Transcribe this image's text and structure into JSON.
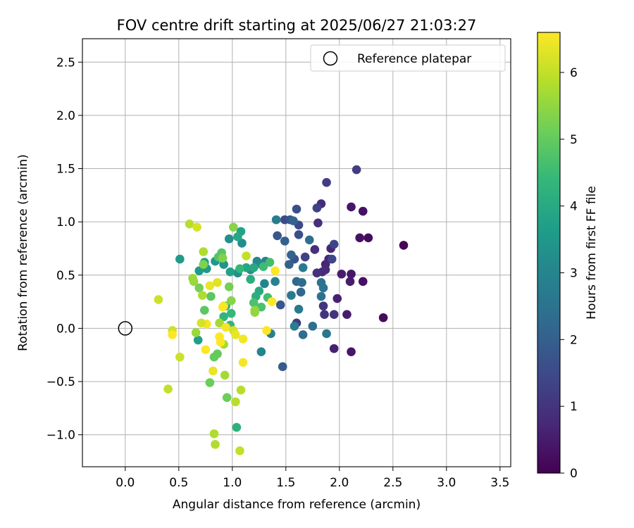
{
  "chart_data": {
    "type": "scatter",
    "title": "FOV centre drift starting at 2025/06/27 21:03:27",
    "xlabel": "Angular distance from reference (arcmin)",
    "ylabel": "Rotation from reference (arcmin)",
    "xlim": [
      -0.4,
      3.6
    ],
    "ylim": [
      -1.3,
      2.72
    ],
    "xticks": [
      "0.0",
      "0.5",
      "1.0",
      "1.5",
      "2.0",
      "2.5",
      "3.0",
      "3.5"
    ],
    "yticks": [
      "−1.0",
      "−0.5",
      "0.0",
      "0.5",
      "1.0",
      "1.5",
      "2.0",
      "2.5"
    ],
    "grid": true,
    "legend": {
      "position": "top-right",
      "entries": [
        "Reference platepar"
      ]
    },
    "reference_point": {
      "x": 0.0,
      "y": 0.0,
      "marker": "open-circle",
      "color": "#000000"
    },
    "colorbar": {
      "label": "Hours from first FF file",
      "range": [
        0,
        6.6
      ],
      "ticks": [
        "0",
        "1",
        "2",
        "3",
        "4",
        "5",
        "6"
      ],
      "colormap": "viridis"
    },
    "colormap_stops": [
      "#440154",
      "#482878",
      "#3e4989",
      "#31688e",
      "#26828e",
      "#1f9e89",
      "#35b779",
      "#6ece58",
      "#b5de2b",
      "#fde725"
    ],
    "series": [
      {
        "points": [
          {
            "x": 2.6,
            "y": 0.78,
            "h": 0.1
          },
          {
            "x": 2.41,
            "y": 0.1,
            "h": 0.2
          },
          {
            "x": 2.27,
            "y": 0.85,
            "h": 0.2
          },
          {
            "x": 2.22,
            "y": 1.1,
            "h": 0.3
          },
          {
            "x": 2.22,
            "y": 0.44,
            "h": 0.3
          },
          {
            "x": 2.19,
            "y": 0.85,
            "h": 0.3
          },
          {
            "x": 2.11,
            "y": 1.14,
            "h": 0.4
          },
          {
            "x": 2.11,
            "y": 0.51,
            "h": 0.4
          },
          {
            "x": 2.11,
            "y": -0.22,
            "h": 0.4
          },
          {
            "x": 2.1,
            "y": 0.44,
            "h": 0.5
          },
          {
            "x": 2.07,
            "y": 0.13,
            "h": 0.5
          },
          {
            "x": 2.02,
            "y": 0.51,
            "h": 0.5
          },
          {
            "x": 1.98,
            "y": 0.28,
            "h": 0.6
          },
          {
            "x": 1.95,
            "y": -0.19,
            "h": 0.6
          },
          {
            "x": 1.92,
            "y": 0.75,
            "h": 0.7
          },
          {
            "x": 1.9,
            "y": 0.65,
            "h": 0.7
          },
          {
            "x": 1.87,
            "y": 0.6,
            "h": 0.7
          },
          {
            "x": 1.87,
            "y": 0.55,
            "h": 0.8
          },
          {
            "x": 1.84,
            "y": 0.53,
            "h": 0.8
          },
          {
            "x": 1.83,
            "y": 1.17,
            "h": 0.8
          },
          {
            "x": 1.79,
            "y": 0.52,
            "h": 0.9
          },
          {
            "x": 1.77,
            "y": 0.74,
            "h": 0.9
          },
          {
            "x": 1.8,
            "y": 0.99,
            "h": 0.9
          },
          {
            "x": 1.85,
            "y": 0.21,
            "h": 1.0
          },
          {
            "x": 1.86,
            "y": 0.13,
            "h": 1.0
          },
          {
            "x": 1.95,
            "y": 0.13,
            "h": 1.0
          },
          {
            "x": 1.6,
            "y": 0.05,
            "h": 1.1
          },
          {
            "x": 1.88,
            "y": 1.37,
            "h": 1.2
          },
          {
            "x": 2.16,
            "y": 1.49,
            "h": 1.2
          },
          {
            "x": 1.79,
            "y": 1.13,
            "h": 1.3
          },
          {
            "x": 1.68,
            "y": 0.67,
            "h": 1.3
          },
          {
            "x": 1.93,
            "y": 0.65,
            "h": 1.4
          },
          {
            "x": 1.95,
            "y": 0.79,
            "h": 1.4
          },
          {
            "x": 1.62,
            "y": 0.97,
            "h": 1.5
          },
          {
            "x": 1.49,
            "y": 1.02,
            "h": 1.5
          },
          {
            "x": 1.6,
            "y": 1.12,
            "h": 1.6
          },
          {
            "x": 1.62,
            "y": 0.88,
            "h": 1.6
          },
          {
            "x": 1.58,
            "y": 0.65,
            "h": 1.7
          },
          {
            "x": 1.54,
            "y": 1.02,
            "h": 1.7
          },
          {
            "x": 1.42,
            "y": 0.87,
            "h": 1.8
          },
          {
            "x": 1.45,
            "y": 0.22,
            "h": 1.8
          },
          {
            "x": 1.47,
            "y": -0.36,
            "h": 1.9
          },
          {
            "x": 1.49,
            "y": 0.82,
            "h": 2.0
          },
          {
            "x": 1.53,
            "y": 0.6,
            "h": 2.0
          },
          {
            "x": 1.55,
            "y": 0.69,
            "h": 2.1
          },
          {
            "x": 1.57,
            "y": 1.01,
            "h": 2.1
          },
          {
            "x": 1.6,
            "y": 0.44,
            "h": 2.2
          },
          {
            "x": 1.64,
            "y": 0.34,
            "h": 2.2
          },
          {
            "x": 1.65,
            "y": 0.43,
            "h": 2.3
          },
          {
            "x": 1.66,
            "y": -0.06,
            "h": 2.3
          },
          {
            "x": 1.72,
            "y": 0.83,
            "h": 2.4
          },
          {
            "x": 1.75,
            "y": 0.02,
            "h": 2.4
          },
          {
            "x": 1.83,
            "y": 0.43,
            "h": 2.5
          },
          {
            "x": 1.83,
            "y": 0.3,
            "h": 2.5
          },
          {
            "x": 1.85,
            "y": 0.38,
            "h": 2.6
          },
          {
            "x": 1.88,
            "y": -0.05,
            "h": 2.6
          },
          {
            "x": 1.66,
            "y": 0.57,
            "h": 2.7
          },
          {
            "x": 1.62,
            "y": 0.18,
            "h": 2.7
          },
          {
            "x": 1.55,
            "y": 0.31,
            "h": 2.7
          },
          {
            "x": 1.58,
            "y": 0.02,
            "h": 2.8
          },
          {
            "x": 1.41,
            "y": 1.02,
            "h": 2.8
          },
          {
            "x": 1.4,
            "y": 0.44,
            "h": 2.9
          },
          {
            "x": 1.36,
            "y": -0.05,
            "h": 2.9
          },
          {
            "x": 1.31,
            "y": 0.63,
            "h": 2.9
          },
          {
            "x": 1.3,
            "y": 0.42,
            "h": 3.0
          },
          {
            "x": 1.27,
            "y": -0.22,
            "h": 3.0
          },
          {
            "x": 1.27,
            "y": 0.6,
            "h": 3.1
          },
          {
            "x": 1.23,
            "y": 0.63,
            "h": 3.1
          },
          {
            "x": 1.17,
            "y": 0.55,
            "h": 3.2
          },
          {
            "x": 1.09,
            "y": 0.8,
            "h": 3.2
          },
          {
            "x": 1.05,
            "y": 0.52,
            "h": 3.3
          },
          {
            "x": 0.97,
            "y": 0.84,
            "h": 3.3
          },
          {
            "x": 0.92,
            "y": 0.6,
            "h": 3.4
          },
          {
            "x": 0.84,
            "y": 0.63,
            "h": 3.5
          },
          {
            "x": 0.76,
            "y": 0.56,
            "h": 3.5
          },
          {
            "x": 0.69,
            "y": 0.54,
            "h": 3.6
          },
          {
            "x": 0.51,
            "y": 0.65,
            "h": 3.6
          },
          {
            "x": 0.68,
            "y": -0.11,
            "h": 3.7
          },
          {
            "x": 0.74,
            "y": 0.62,
            "h": 3.7
          },
          {
            "x": 0.98,
            "y": 0.53,
            "h": 3.8
          },
          {
            "x": 1.08,
            "y": 0.91,
            "h": 3.8
          },
          {
            "x": 1.05,
            "y": 0.86,
            "h": 3.9
          },
          {
            "x": 1.13,
            "y": 0.57,
            "h": 3.9
          },
          {
            "x": 1.2,
            "y": 0.57,
            "h": 4.0
          },
          {
            "x": 1.25,
            "y": 0.35,
            "h": 4.0
          },
          {
            "x": 1.22,
            "y": 0.3,
            "h": 4.1
          },
          {
            "x": 1.17,
            "y": 0.46,
            "h": 4.1
          },
          {
            "x": 1.04,
            "y": -0.93,
            "h": 4.2
          },
          {
            "x": 0.94,
            "y": 0.21,
            "h": 4.2
          },
          {
            "x": 0.92,
            "y": 0.11,
            "h": 4.3
          },
          {
            "x": 0.98,
            "y": 0.03,
            "h": 4.3
          },
          {
            "x": 0.99,
            "y": 0.14,
            "h": 4.4
          },
          {
            "x": 1.07,
            "y": 0.56,
            "h": 4.4
          },
          {
            "x": 1.29,
            "y": 0.58,
            "h": 4.5
          },
          {
            "x": 1.35,
            "y": 0.62,
            "h": 4.6
          },
          {
            "x": 1.33,
            "y": 0.29,
            "h": 4.6
          },
          {
            "x": 1.27,
            "y": 0.2,
            "h": 4.7
          },
          {
            "x": 1.2,
            "y": 0.24,
            "h": 4.7
          },
          {
            "x": 0.9,
            "y": 0.71,
            "h": 4.8
          },
          {
            "x": 0.87,
            "y": 0.67,
            "h": 4.8
          },
          {
            "x": 0.8,
            "y": 0.3,
            "h": 4.9
          },
          {
            "x": 0.74,
            "y": 0.17,
            "h": 4.9
          },
          {
            "x": 0.83,
            "y": -0.27,
            "h": 5.0
          },
          {
            "x": 0.86,
            "y": -0.24,
            "h": 5.0
          },
          {
            "x": 0.79,
            "y": -0.51,
            "h": 5.1
          },
          {
            "x": 0.95,
            "y": -0.65,
            "h": 5.1
          },
          {
            "x": 0.97,
            "y": 0.39,
            "h": 5.2
          },
          {
            "x": 0.69,
            "y": 0.38,
            "h": 5.2
          },
          {
            "x": 0.73,
            "y": 0.6,
            "h": 5.3
          },
          {
            "x": 0.91,
            "y": 0.66,
            "h": 5.3
          },
          {
            "x": 1.01,
            "y": 0.95,
            "h": 5.4
          },
          {
            "x": 0.99,
            "y": 0.26,
            "h": 5.4
          },
          {
            "x": 1.21,
            "y": 0.17,
            "h": 5.5
          },
          {
            "x": 1.21,
            "y": 0.15,
            "h": 5.5
          },
          {
            "x": 0.63,
            "y": 0.47,
            "h": 5.6
          },
          {
            "x": 0.66,
            "y": -0.04,
            "h": 5.6
          },
          {
            "x": 0.88,
            "y": 0.05,
            "h": 5.7
          },
          {
            "x": 0.92,
            "y": -0.15,
            "h": 5.7
          },
          {
            "x": 0.93,
            "y": -0.44,
            "h": 5.7
          },
          {
            "x": 0.83,
            "y": -0.99,
            "h": 5.8
          },
          {
            "x": 0.84,
            "y": -1.09,
            "h": 5.8
          },
          {
            "x": 1.03,
            "y": -0.69,
            "h": 5.9
          },
          {
            "x": 1.08,
            "y": -0.58,
            "h": 5.9
          },
          {
            "x": 1.07,
            "y": -1.15,
            "h": 6.0
          },
          {
            "x": 0.4,
            "y": -0.57,
            "h": 6.0
          },
          {
            "x": 0.44,
            "y": -0.02,
            "h": 6.1
          },
          {
            "x": 0.51,
            "y": -0.27,
            "h": 6.1
          },
          {
            "x": 0.31,
            "y": 0.27,
            "h": 6.1
          },
          {
            "x": 0.6,
            "y": 0.98,
            "h": 5.9
          },
          {
            "x": 0.67,
            "y": 0.95,
            "h": 6.2
          },
          {
            "x": 0.64,
            "y": 0.44,
            "h": 5.6
          },
          {
            "x": 0.73,
            "y": 0.72,
            "h": 5.8
          },
          {
            "x": 0.72,
            "y": 0.31,
            "h": 5.8
          },
          {
            "x": 1.13,
            "y": 0.68,
            "h": 6.0
          },
          {
            "x": 0.92,
            "y": 0.21,
            "h": 6.3
          },
          {
            "x": 0.76,
            "y": 0.04,
            "h": 6.5
          },
          {
            "x": 0.71,
            "y": 0.05,
            "h": 6.2
          },
          {
            "x": 0.82,
            "y": -0.4,
            "h": 6.4
          },
          {
            "x": 0.79,
            "y": 0.4,
            "h": 6.4
          },
          {
            "x": 0.86,
            "y": 0.43,
            "h": 6.3
          },
          {
            "x": 0.94,
            "y": 0.01,
            "h": 6.5
          },
          {
            "x": 1.01,
            "y": -0.02,
            "h": 6.2
          },
          {
            "x": 1.03,
            "y": -0.06,
            "h": 6.4
          },
          {
            "x": 1.1,
            "y": -0.1,
            "h": 6.5
          },
          {
            "x": 1.1,
            "y": -0.32,
            "h": 6.5
          },
          {
            "x": 0.88,
            "y": -0.08,
            "h": 6.6
          },
          {
            "x": 0.89,
            "y": -0.13,
            "h": 6.6
          },
          {
            "x": 0.75,
            "y": -0.2,
            "h": 6.6
          },
          {
            "x": 0.44,
            "y": -0.06,
            "h": 6.6
          },
          {
            "x": 1.32,
            "y": -0.02,
            "h": 6.6
          },
          {
            "x": 1.37,
            "y": 0.25,
            "h": 6.6
          },
          {
            "x": 1.4,
            "y": 0.54,
            "h": 6.6
          },
          {
            "x": 0.91,
            "y": 0.2,
            "h": 6.6
          }
        ]
      }
    ]
  }
}
